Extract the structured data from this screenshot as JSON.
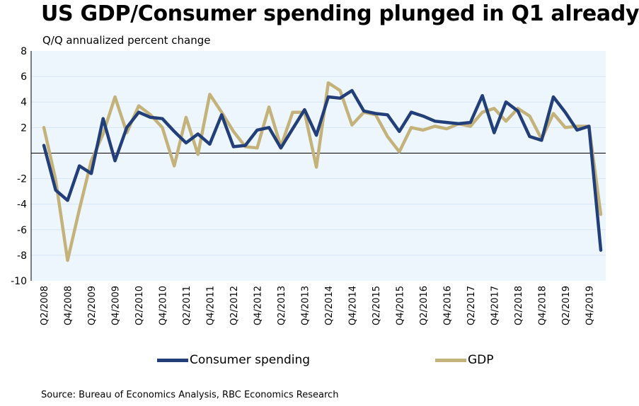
{
  "title": "US GDP/Consumer spending plunged in Q1 already",
  "source": "Source: Bureau of Economics Analysis, RBC Economics Research",
  "colors": {
    "consumer": "#233f7a",
    "gdp": "#c4b27b",
    "plot_bg": "#eef6fd",
    "grid": "#d6e6f4"
  },
  "chart_data": {
    "type": "line",
    "title": "US GDP/Consumer spending plunged in Q1 already",
    "ylabel": "Q/Q annualized percent change",
    "xlabel": "",
    "ylim": [
      -10,
      8
    ],
    "yticks": [
      8,
      6,
      4,
      2,
      -2,
      -4,
      -6,
      -8,
      -10
    ],
    "grid": true,
    "legend_position": "bottom",
    "x": [
      "Q2/2008",
      "Q3/2008",
      "Q4/2008",
      "Q1/2009",
      "Q2/2009",
      "Q3/2009",
      "Q4/2009",
      "Q1/2010",
      "Q2/2010",
      "Q3/2010",
      "Q4/2010",
      "Q1/2011",
      "Q2/2011",
      "Q3/2011",
      "Q4/2011",
      "Q1/2012",
      "Q2/2012",
      "Q3/2012",
      "Q4/2012",
      "Q1/2013",
      "Q2/2013",
      "Q3/2013",
      "Q4/2013",
      "Q1/2014",
      "Q2/2014",
      "Q3/2014",
      "Q4/2014",
      "Q1/2015",
      "Q2/2015",
      "Q3/2015",
      "Q4/2015",
      "Q1/2016",
      "Q2/2016",
      "Q3/2016",
      "Q4/2016",
      "Q1/2017",
      "Q2/2017",
      "Q3/2017",
      "Q4/2017",
      "Q1/2018",
      "Q2/2018",
      "Q3/2018",
      "Q4/2018",
      "Q1/2019",
      "Q2/2019",
      "Q3/2019",
      "Q4/2019",
      "Q1/2020"
    ],
    "tick_labels": [
      "Q2/2008",
      "Q4/2008",
      "Q2/2009",
      "Q4/2009",
      "Q2/2010",
      "Q4/2010",
      "Q2/2011",
      "Q4/2011",
      "Q2/2012",
      "Q4/2012",
      "Q2/2013",
      "Q4/2013",
      "Q2/2014",
      "Q4/2014",
      "Q2/2015",
      "Q4/2015",
      "Q2/2016",
      "Q4/2016",
      "Q2/2017",
      "Q4/2017",
      "Q2/2018",
      "Q4/2018",
      "Q2/2019",
      "Q4/2019"
    ],
    "series": [
      {
        "name": "Consumer spending",
        "color": "#233f7a",
        "values": [
          0.6,
          -2.9,
          -3.7,
          -1.0,
          -1.6,
          2.7,
          -0.6,
          2.0,
          3.2,
          2.8,
          2.7,
          1.7,
          0.8,
          1.5,
          0.7,
          3.0,
          0.5,
          0.6,
          1.8,
          2.0,
          0.4,
          1.9,
          3.4,
          1.4,
          4.4,
          4.3,
          4.9,
          3.3,
          3.1,
          3.0,
          1.7,
          3.2,
          2.9,
          2.5,
          2.4,
          2.3,
          2.4,
          4.5,
          1.6,
          4.0,
          3.3,
          1.3,
          1.0,
          4.4,
          3.2,
          1.8,
          2.1,
          -7.6
        ]
      },
      {
        "name": "GDP",
        "color": "#c4b27b",
        "values": [
          2.0,
          -2.1,
          -8.4,
          -4.4,
          -0.6,
          1.5,
          4.4,
          1.6,
          3.7,
          3.0,
          2.0,
          -1.0,
          2.8,
          -0.1,
          4.6,
          3.2,
          1.7,
          0.5,
          0.4,
          3.6,
          0.5,
          3.2,
          3.2,
          -1.1,
          5.5,
          4.9,
          2.2,
          3.2,
          3.0,
          1.3,
          0.1,
          2.0,
          1.8,
          2.1,
          1.9,
          2.3,
          2.1,
          3.2,
          3.5,
          2.5,
          3.5,
          2.9,
          1.1,
          3.1,
          2.0,
          2.1,
          2.1,
          -4.8
        ]
      }
    ]
  }
}
